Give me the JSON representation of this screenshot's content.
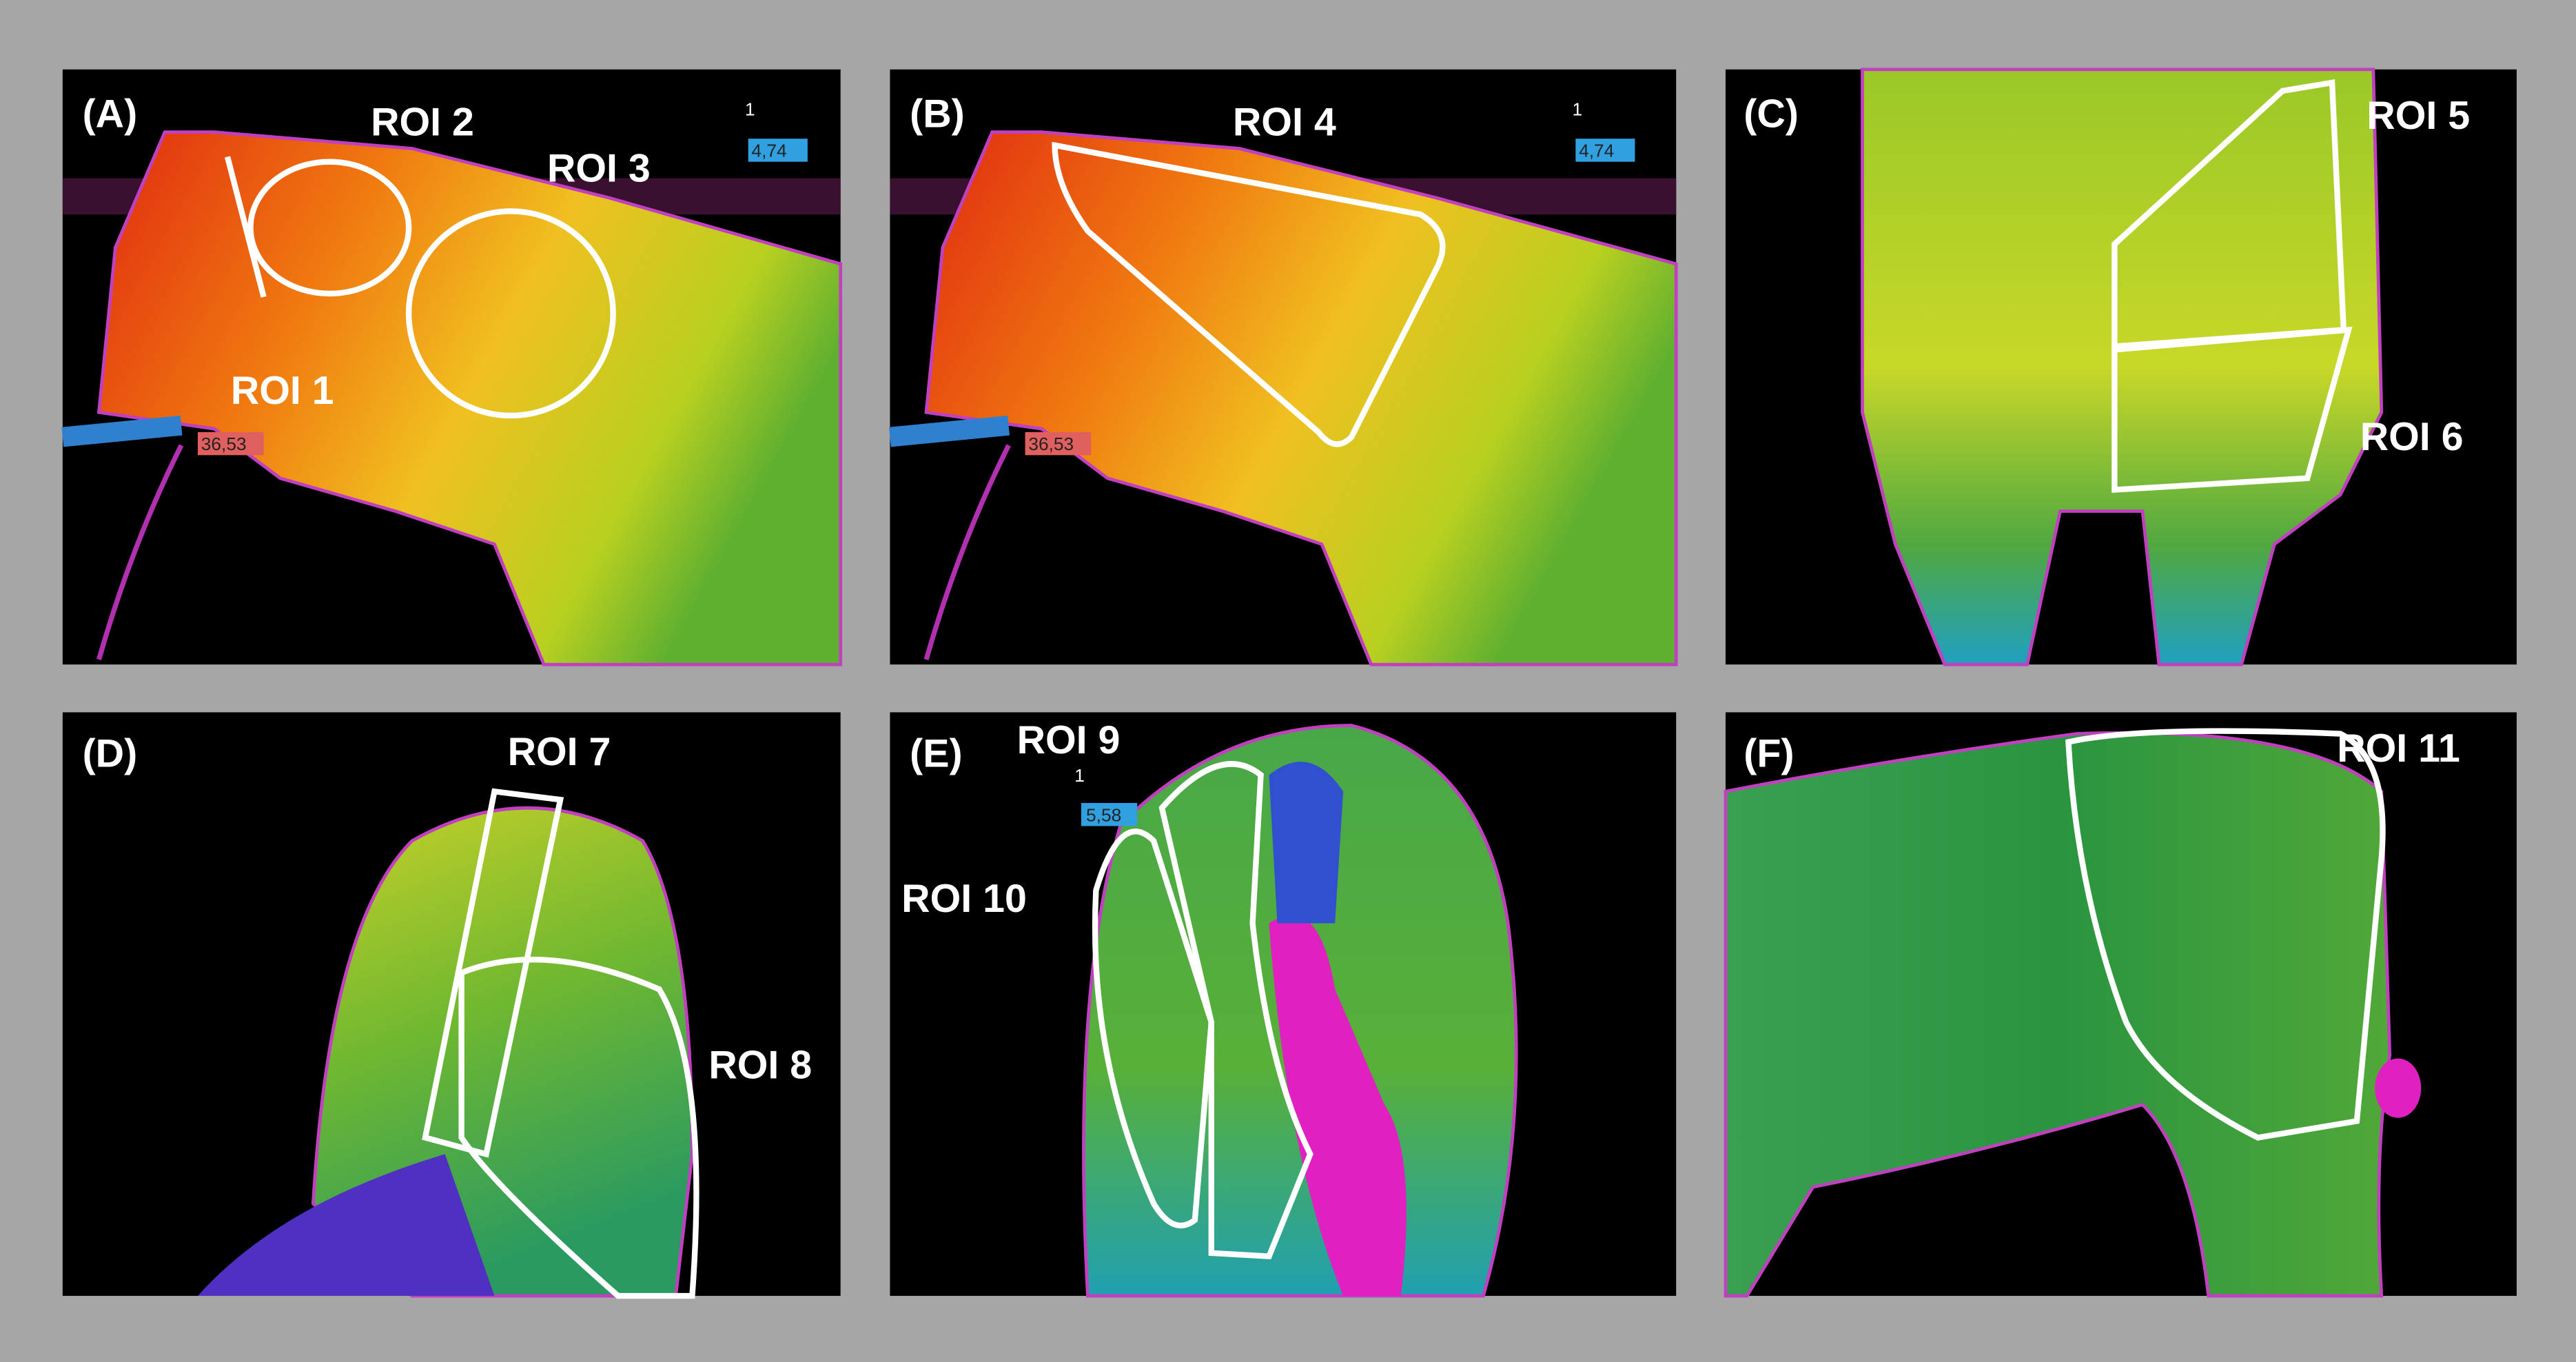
{
  "panels": [
    {
      "label": "(A)",
      "rois": [
        "ROI 2",
        "ROI 3",
        "ROI 1"
      ],
      "readouts": [
        "36,53",
        "4,74"
      ],
      "markers": [
        "1"
      ]
    },
    {
      "label": "(B)",
      "rois": [
        "ROI 4"
      ],
      "readouts": [
        "36,53",
        "4,74"
      ],
      "markers": [
        "1"
      ]
    },
    {
      "label": "(C)",
      "rois": [
        "ROI 5",
        "ROI 6"
      ]
    },
    {
      "label": "(D)",
      "rois": [
        "ROI 7",
        "ROI 8"
      ]
    },
    {
      "label": "(E)",
      "rois": [
        "ROI 9",
        "ROI 10"
      ],
      "readouts": [
        "5,58"
      ],
      "markers": [
        "1"
      ]
    },
    {
      "label": "(F)",
      "rois": [
        "ROI 11"
      ]
    }
  ]
}
